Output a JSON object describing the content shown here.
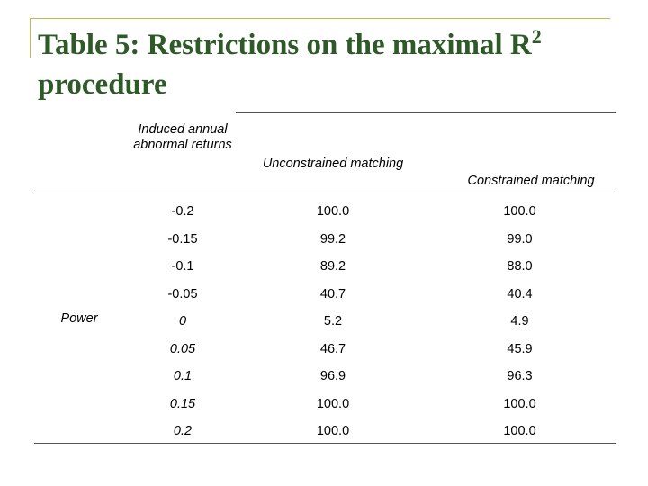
{
  "slide": {
    "title_line1": "Table 5: Restrictions on the maximal R",
    "title_sup": "2",
    "title_line2": "procedure"
  },
  "table": {
    "columns": [
      "Induced annual abnormal returns",
      "Unconstrained matching",
      "Constrained matching"
    ],
    "row_label": "Power",
    "rows": [
      {
        "ret": "-0.2",
        "unc": "100.0",
        "con": "100.0"
      },
      {
        "ret": "-0.15",
        "unc": "99.2",
        "con": "99.0"
      },
      {
        "ret": "-0.1",
        "unc": "89.2",
        "con": "88.0"
      },
      {
        "ret": "-0.05",
        "unc": "40.7",
        "con": "40.4"
      },
      {
        "ret": "0",
        "unc": "5.2",
        "con": "4.9"
      },
      {
        "ret": "0.05",
        "unc": "46.7",
        "con": "45.9"
      },
      {
        "ret": "0.1",
        "unc": "96.9",
        "con": "96.3"
      },
      {
        "ret": "0.15",
        "unc": "100.0",
        "con": "100.0"
      },
      {
        "ret": "0.2",
        "unc": "100.0",
        "con": "100.0"
      }
    ]
  }
}
